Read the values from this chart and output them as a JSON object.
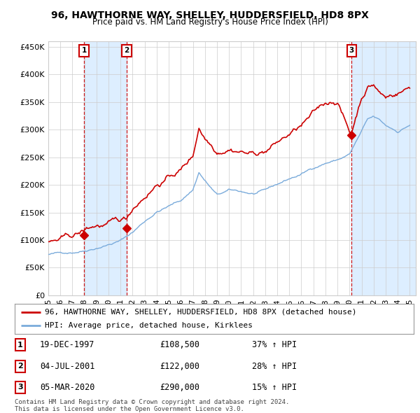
{
  "title": "96, HAWTHORNE WAY, SHELLEY, HUDDERSFIELD, HD8 8PX",
  "subtitle": "Price paid vs. HM Land Registry's House Price Index (HPI)",
  "ylabel_ticks": [
    "£0",
    "£50K",
    "£100K",
    "£150K",
    "£200K",
    "£250K",
    "£300K",
    "£350K",
    "£400K",
    "£450K"
  ],
  "ytick_vals": [
    0,
    50000,
    100000,
    150000,
    200000,
    250000,
    300000,
    350000,
    400000,
    450000
  ],
  "xlim_start": 1995.0,
  "xlim_end": 2025.5,
  "ylim": [
    0,
    460000
  ],
  "sale_dates": [
    1997.97,
    2001.5,
    2020.17
  ],
  "sale_prices": [
    108500,
    122000,
    290000
  ],
  "sale_labels": [
    "1",
    "2",
    "3"
  ],
  "legend_line1": "96, HAWTHORNE WAY, SHELLEY, HUDDERSFIELD, HD8 8PX (detached house)",
  "legend_line2": "HPI: Average price, detached house, Kirklees",
  "table_rows": [
    {
      "label": "1",
      "date": "19-DEC-1997",
      "price": "£108,500",
      "hpi": "37% ↑ HPI"
    },
    {
      "label": "2",
      "date": "04-JUL-2001",
      "price": "£122,000",
      "hpi": "28% ↑ HPI"
    },
    {
      "label": "3",
      "date": "05-MAR-2020",
      "price": "£290,000",
      "hpi": "15% ↑ HPI"
    }
  ],
  "footer": "Contains HM Land Registry data © Crown copyright and database right 2024.\nThis data is licensed under the Open Government Licence v3.0.",
  "hpi_color": "#7aabdb",
  "price_color": "#cc0000",
  "shade_color": "#ddeeff",
  "background_color": "#ffffff",
  "grid_color": "#cccccc"
}
